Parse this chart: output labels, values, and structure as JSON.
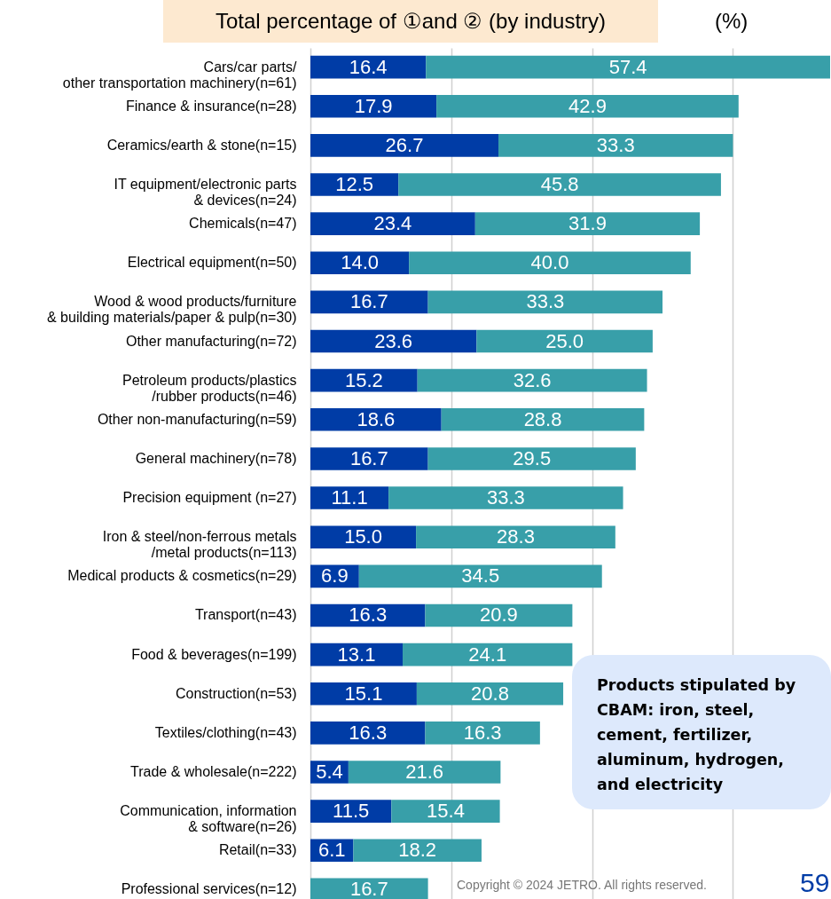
{
  "chart_data": {
    "type": "bar",
    "orientation": "horizontal",
    "stacked": true,
    "title": "Total percentage of ①and ② (by industry)",
    "categories": [
      "Cars/car parts/\nother transportation machinery(n=61)",
      "Finance & insurance(n=28)",
      "Ceramics/earth & stone(n=15)",
      "IT equipment/electronic parts\n& devices(n=24)",
      "Chemicals(n=47)",
      "Electrical equipment(n=50)",
      "Wood & wood products/furniture\n& building materials/paper & pulp(n=30)",
      "Other manufacturing(n=72)",
      "Petroleum products/plastics\n/rubber products(n=46)",
      "Other non-manufacturing(n=59)",
      "General machinery(n=78)",
      "Precision equipment (n=27)",
      "Iron & steel/non-ferrous metals\n/metal products(n=113)",
      "Medical products & cosmetics(n=29)",
      "Transport(n=43)",
      "Food & beverages(n=199)",
      "Construction(n=53)",
      "Textiles/clothing(n=43)",
      "Trade & wholesale(n=222)",
      "Communication, information\n& software(n=26)",
      "Retail(n=33)",
      "Professional services(n=12)"
    ],
    "series": [
      {
        "color": "#003ca6",
        "values": [
          16.4,
          17.9,
          26.7,
          12.5,
          23.4,
          14.0,
          16.7,
          23.6,
          15.2,
          18.6,
          16.7,
          11.1,
          15.0,
          6.9,
          16.3,
          13.1,
          15.1,
          16.3,
          5.4,
          11.5,
          6.1,
          null
        ],
        "value_labels": [
          "16.4",
          "17.9",
          "26.7",
          "12.5",
          "23.4",
          "14.0",
          "16.7",
          "23.6",
          "15.2",
          "18.6",
          "16.7",
          "11.1",
          "15.0",
          "6.9",
          "16.3",
          "13.1",
          "15.1",
          "16.3",
          "5.4",
          "11.5",
          "6.1",
          null
        ]
      },
      {
        "color": "#389fa9",
        "values": [
          57.4,
          42.9,
          33.3,
          45.8,
          31.9,
          40.0,
          33.3,
          25.0,
          32.6,
          28.8,
          29.5,
          33.3,
          28.3,
          34.5,
          20.9,
          24.1,
          20.8,
          16.3,
          21.6,
          15.4,
          18.2,
          16.7
        ],
        "value_labels": [
          "57.4",
          "42.9",
          "33.3",
          "45.8",
          "31.9",
          "40.0",
          "33.3",
          "25.0",
          "32.6",
          "28.8",
          "29.5",
          "33.3",
          "28.3",
          "34.5",
          "20.9",
          "24.1",
          "20.8",
          "16.3",
          "21.6",
          "15.4",
          "18.2",
          "16.7"
        ]
      }
    ],
    "xlim": [
      0,
      73.8
    ],
    "xticks": [
      {
        "value": 0,
        "label": null
      },
      {
        "value": 20,
        "label": null
      },
      {
        "value": 40,
        "label": null
      },
      {
        "value": 60,
        "label": null
      }
    ],
    "grid": true,
    "annotations": [
      "(%)",
      "Products stipulated by CBAM: iron, steel, cement, fertilizer, aluminum, hydrogen, and electricity",
      "Copyright © 2024 JETRO. All rights reserved.",
      "59"
    ]
  }
}
